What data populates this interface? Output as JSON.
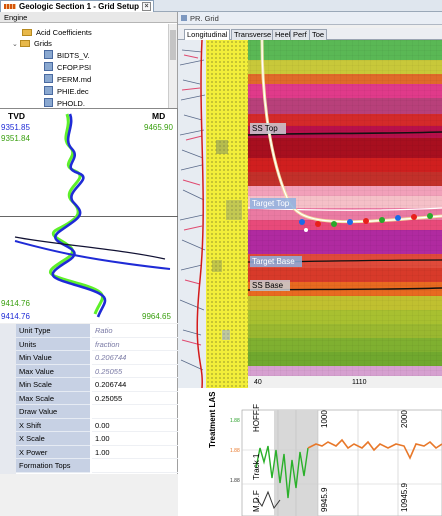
{
  "window": {
    "tab_title": "Geologic Section 1 - Grid Setup",
    "close_symbol": "×"
  },
  "tree": {
    "header": "Engine",
    "items": [
      {
        "label": "Acid Coefficients",
        "type": "folder",
        "indent": 1,
        "expanded": false
      },
      {
        "label": "Grids",
        "type": "folder",
        "indent": 1,
        "expanded": true
      },
      {
        "label": "BIDTS_V.",
        "type": "file",
        "indent": 2
      },
      {
        "label": "CFOP.PSI",
        "type": "file",
        "indent": 2
      },
      {
        "label": "PERM.md",
        "type": "file",
        "indent": 2
      },
      {
        "label": "PHIE.dec",
        "type": "file",
        "indent": 2
      },
      {
        "label": "PHOLD.",
        "type": "file",
        "indent": 2
      }
    ]
  },
  "log": {
    "tvd_label": "TVD",
    "md_label": "MD",
    "tvd_top_1": "9351.85",
    "tvd_top_2": "9351.84",
    "md_top": "9465.90",
    "tvd_bottom_1": "9414.76",
    "tvd_bottom_2": "9414.76",
    "md_bottom": "9964.65",
    "colors": {
      "blue": "#1f2bd6",
      "green": "#5ef02a",
      "dark": "#111133"
    }
  },
  "properties": [
    {
      "key": "Unit Type",
      "value": "Ratio",
      "italic": true
    },
    {
      "key": "Units",
      "value": "fraction",
      "italic": true
    },
    {
      "key": "Min Value",
      "value": "0.206744",
      "italic": true
    },
    {
      "key": "Max Value",
      "value": "0.25055",
      "italic": true
    },
    {
      "key": "Min Scale",
      "value": "0.206744",
      "italic": false
    },
    {
      "key": "Max Scale",
      "value": "0.25055",
      "italic": false
    },
    {
      "key": "Draw Value",
      "value": "",
      "italic": false
    },
    {
      "key": "X Shift",
      "value": "0.00",
      "italic": false
    },
    {
      "key": "X Scale",
      "value": "1.00",
      "italic": false
    },
    {
      "key": "X Power",
      "value": "1.00",
      "italic": false
    },
    {
      "key": "Formation Tops",
      "value": "",
      "italic": false
    }
  ],
  "grid": {
    "title": "PR. Grid",
    "tabs": [
      "Longitudinal",
      "Transverse",
      "Heel",
      "Perf",
      "Toe"
    ],
    "active_tab": "Longitudinal",
    "markers": [
      "SS Top",
      "Target Top",
      "Target Base",
      "SS Base"
    ],
    "axis_labels": [
      "40",
      "1110"
    ]
  },
  "bottom": {
    "track_title": "Treatment LAS",
    "labels": [
      "HOFF.F",
      "1000",
      "2000",
      "Track 1",
      "9945.9",
      "10945.9",
      "M.D.F"
    ],
    "small_vals": [
      "1.88",
      "1.88",
      "1.88"
    ]
  }
}
